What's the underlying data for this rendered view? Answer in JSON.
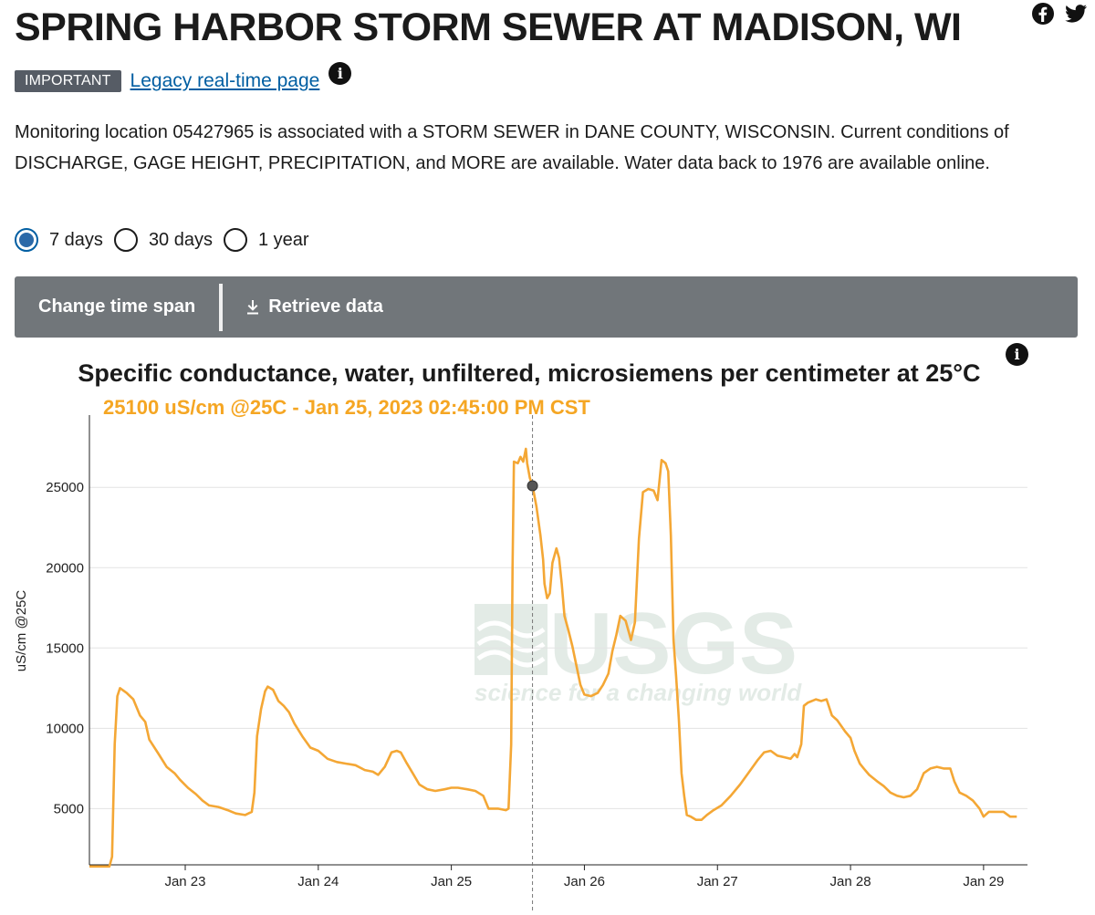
{
  "page": {
    "title": "SPRING HARBOR STORM SEWER AT MADISON, WI",
    "badge": "IMPORTANT",
    "legacy_link": "Legacy real-time page",
    "description": "Monitoring location 05427965 is associated with a STORM SEWER in DANE COUNTY, WISCONSIN. Current conditions of DISCHARGE, GAGE HEIGHT, PRECIPITATION, and MORE are available. Water data back to 1976 are available online."
  },
  "social": {
    "icons": [
      "facebook-icon",
      "twitter-icon"
    ]
  },
  "timespan": {
    "options": [
      {
        "label": "7 days",
        "checked": true
      },
      {
        "label": "30 days",
        "checked": false
      },
      {
        "label": "1 year",
        "checked": false
      }
    ]
  },
  "toolbar": {
    "change_label": "Change time span",
    "retrieve_label": "Retrieve data"
  },
  "watermark": {
    "logo": "USGS",
    "tagline": "science for a changing world"
  },
  "colors": {
    "series": "#f4a735",
    "accent": "#005ea2",
    "toolbar": "#71767a",
    "badge": "#565c65"
  },
  "chart_data": {
    "type": "line",
    "title": "Specific conductance, water, unfiltered, microsiemens per centimeter at 25°C",
    "ylabel": "uS/cm @25C",
    "tooltip": "25100 uS/cm @25C - Jan 25, 2023 02:45:00 PM CST",
    "x_ticks": [
      {
        "label": "Jan 23",
        "x": 23
      },
      {
        "label": "Jan 24",
        "x": 24
      },
      {
        "label": "Jan 25",
        "x": 25
      },
      {
        "label": "Jan 26",
        "x": 26
      },
      {
        "label": "Jan 27",
        "x": 27
      },
      {
        "label": "Jan 28",
        "x": 28
      },
      {
        "label": "Jan 29",
        "x": 29
      }
    ],
    "y_ticks": [
      5000,
      10000,
      15000,
      20000,
      25000
    ],
    "xlim": [
      22.28,
      29.33
    ],
    "ylim": [
      1500,
      29500
    ],
    "grid": "horizontal",
    "highlight": {
      "x": 25.61,
      "y": 25100
    },
    "series": [
      {
        "values": [
          [
            22.28,
            1400
          ],
          [
            22.43,
            1400
          ],
          [
            22.45,
            2000
          ],
          [
            22.47,
            9000
          ],
          [
            22.49,
            12000
          ],
          [
            22.51,
            12500
          ],
          [
            22.56,
            12200
          ],
          [
            22.61,
            11800
          ],
          [
            22.66,
            10800
          ],
          [
            22.7,
            10400
          ],
          [
            22.73,
            9300
          ],
          [
            22.8,
            8400
          ],
          [
            22.86,
            7600
          ],
          [
            22.92,
            7200
          ],
          [
            22.96,
            6800
          ],
          [
            23.02,
            6300
          ],
          [
            23.08,
            5900
          ],
          [
            23.13,
            5500
          ],
          [
            23.18,
            5200
          ],
          [
            23.25,
            5100
          ],
          [
            23.32,
            4900
          ],
          [
            23.38,
            4700
          ],
          [
            23.45,
            4600
          ],
          [
            23.5,
            4800
          ],
          [
            23.52,
            6000
          ],
          [
            23.54,
            9500
          ],
          [
            23.57,
            11200
          ],
          [
            23.6,
            12300
          ],
          [
            23.62,
            12600
          ],
          [
            23.66,
            12400
          ],
          [
            23.7,
            11700
          ],
          [
            23.74,
            11400
          ],
          [
            23.78,
            11000
          ],
          [
            23.82,
            10300
          ],
          [
            23.88,
            9500
          ],
          [
            23.94,
            8800
          ],
          [
            24.0,
            8600
          ],
          [
            24.07,
            8100
          ],
          [
            24.14,
            7900
          ],
          [
            24.21,
            7800
          ],
          [
            24.28,
            7700
          ],
          [
            24.35,
            7400
          ],
          [
            24.41,
            7300
          ],
          [
            24.45,
            7100
          ],
          [
            24.5,
            7600
          ],
          [
            24.55,
            8500
          ],
          [
            24.59,
            8600
          ],
          [
            24.62,
            8500
          ],
          [
            24.66,
            7900
          ],
          [
            24.71,
            7200
          ],
          [
            24.76,
            6500
          ],
          [
            24.82,
            6200
          ],
          [
            24.88,
            6100
          ],
          [
            24.95,
            6200
          ],
          [
            25.0,
            6300
          ],
          [
            25.05,
            6300
          ],
          [
            25.12,
            6200
          ],
          [
            25.18,
            6100
          ],
          [
            25.24,
            5800
          ],
          [
            25.28,
            5000
          ],
          [
            25.35,
            5000
          ],
          [
            25.41,
            4900
          ],
          [
            25.43,
            5000
          ],
          [
            25.45,
            9000
          ],
          [
            25.46,
            20000
          ],
          [
            25.47,
            26600
          ],
          [
            25.5,
            26500
          ],
          [
            25.52,
            26900
          ],
          [
            25.54,
            26600
          ],
          [
            25.56,
            27400
          ],
          [
            25.57,
            26500
          ],
          [
            25.59,
            25600
          ],
          [
            25.61,
            25100
          ],
          [
            25.64,
            23800
          ],
          [
            25.67,
            22000
          ],
          [
            25.69,
            20500
          ],
          [
            25.7,
            19000
          ],
          [
            25.72,
            18100
          ],
          [
            25.74,
            18400
          ],
          [
            25.76,
            20300
          ],
          [
            25.79,
            21200
          ],
          [
            25.81,
            20600
          ],
          [
            25.83,
            19000
          ],
          [
            25.85,
            17000
          ],
          [
            25.88,
            16100
          ],
          [
            25.91,
            15100
          ],
          [
            25.94,
            13900
          ],
          [
            25.97,
            12700
          ],
          [
            26.0,
            12100
          ],
          [
            26.05,
            12000
          ],
          [
            26.1,
            12200
          ],
          [
            26.14,
            12700
          ],
          [
            26.18,
            13400
          ],
          [
            26.21,
            14800
          ],
          [
            26.24,
            15800
          ],
          [
            26.27,
            17000
          ],
          [
            26.31,
            16700
          ],
          [
            26.35,
            15500
          ],
          [
            26.38,
            16600
          ],
          [
            26.41,
            21800
          ],
          [
            26.44,
            24700
          ],
          [
            26.48,
            24900
          ],
          [
            26.52,
            24800
          ],
          [
            26.55,
            24200
          ],
          [
            26.58,
            26700
          ],
          [
            26.61,
            26500
          ],
          [
            26.63,
            26000
          ],
          [
            26.65,
            22000
          ],
          [
            26.67,
            15500
          ],
          [
            26.69,
            13200
          ],
          [
            26.71,
            10500
          ],
          [
            26.73,
            7200
          ],
          [
            26.75,
            5800
          ],
          [
            26.77,
            4600
          ],
          [
            26.8,
            4500
          ],
          [
            26.84,
            4300
          ],
          [
            26.88,
            4300
          ],
          [
            26.92,
            4600
          ],
          [
            26.97,
            4900
          ],
          [
            27.03,
            5200
          ],
          [
            27.1,
            5800
          ],
          [
            27.17,
            6500
          ],
          [
            27.24,
            7300
          ],
          [
            27.3,
            8000
          ],
          [
            27.35,
            8500
          ],
          [
            27.4,
            8600
          ],
          [
            27.45,
            8300
          ],
          [
            27.5,
            8200
          ],
          [
            27.55,
            8100
          ],
          [
            27.58,
            8400
          ],
          [
            27.6,
            8200
          ],
          [
            27.63,
            9000
          ],
          [
            27.65,
            11400
          ],
          [
            27.68,
            11600
          ],
          [
            27.74,
            11800
          ],
          [
            27.78,
            11700
          ],
          [
            27.82,
            11800
          ],
          [
            27.86,
            10800
          ],
          [
            27.9,
            10500
          ],
          [
            27.96,
            9800
          ],
          [
            28.0,
            9400
          ],
          [
            28.03,
            8600
          ],
          [
            28.07,
            7800
          ],
          [
            28.1,
            7500
          ],
          [
            28.14,
            7100
          ],
          [
            28.2,
            6700
          ],
          [
            28.25,
            6400
          ],
          [
            28.3,
            6000
          ],
          [
            28.35,
            5800
          ],
          [
            28.4,
            5700
          ],
          [
            28.45,
            5800
          ],
          [
            28.5,
            6200
          ],
          [
            28.55,
            7200
          ],
          [
            28.6,
            7500
          ],
          [
            28.65,
            7600
          ],
          [
            28.7,
            7500
          ],
          [
            28.75,
            7500
          ],
          [
            28.78,
            6700
          ],
          [
            28.82,
            6000
          ],
          [
            28.87,
            5800
          ],
          [
            28.92,
            5500
          ],
          [
            28.97,
            5000
          ],
          [
            29.0,
            4500
          ],
          [
            29.04,
            4800
          ],
          [
            29.1,
            4800
          ],
          [
            29.15,
            4800
          ],
          [
            29.2,
            4500
          ],
          [
            29.25,
            4500
          ]
        ]
      }
    ]
  }
}
